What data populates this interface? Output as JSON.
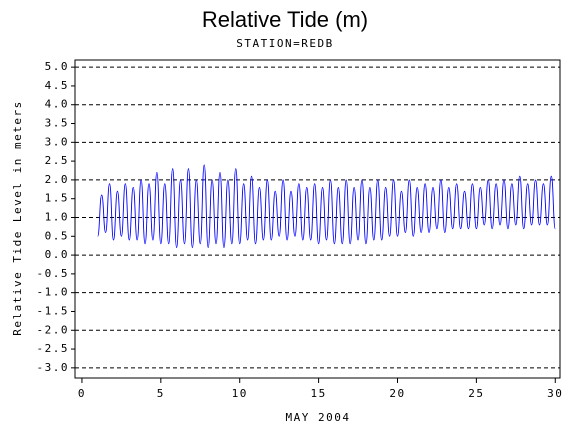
{
  "chart_data": {
    "type": "line",
    "title": "Relative Tide (m)",
    "subtitle": "STATION=REDB",
    "x_label": "MAY 2004",
    "y_label": "Relative Tide Level in meters",
    "xlim": [
      -0.44,
      30.3
    ],
    "xticks": [
      0,
      5,
      10,
      15,
      20,
      25,
      30
    ],
    "ylim": [
      -3.27,
      5.19
    ],
    "yticks": [
      {
        "value": 5,
        "label": "5.0"
      },
      {
        "value": 4.5,
        "label": "4.5"
      },
      {
        "value": 4,
        "label": "4.0"
      },
      {
        "value": 3.5,
        "label": "3.5"
      },
      {
        "value": 3,
        "label": "3.0"
      },
      {
        "value": 2.5,
        "label": "2.5"
      },
      {
        "value": 2,
        "label": "2.0"
      },
      {
        "value": 1.5,
        "label": "1.5"
      },
      {
        "value": 1,
        "label": "1.0"
      },
      {
        "value": 0.5,
        "label": "0.5"
      },
      {
        "value": 0,
        "label": "0.0"
      },
      {
        "value": -0.5,
        "label": "-0.5"
      },
      {
        "value": -1,
        "label": "-1.0"
      },
      {
        "value": -1.5,
        "label": "-1.5"
      },
      {
        "value": -2,
        "label": "-2.0"
      },
      {
        "value": -2.5,
        "label": "-2.5"
      },
      {
        "value": -3,
        "label": "-3.0"
      }
    ],
    "grid": true,
    "x": [
      1,
      1.25,
      1.5,
      1.75,
      2,
      2.25,
      2.5,
      2.75,
      3,
      3.25,
      3.5,
      3.75,
      4,
      4.25,
      4.5,
      4.75,
      5,
      5.25,
      5.5,
      5.75,
      6,
      6.25,
      6.5,
      6.75,
      7,
      7.25,
      7.5,
      7.75,
      8,
      8.25,
      8.5,
      8.75,
      9,
      9.25,
      9.5,
      9.75,
      10,
      10.25,
      10.5,
      10.75,
      11,
      11.25,
      11.5,
      11.75,
      12,
      12.25,
      12.5,
      12.75,
      13,
      13.25,
      13.5,
      13.75,
      14,
      14.25,
      14.5,
      14.75,
      15,
      15.25,
      15.5,
      15.75,
      16,
      16.25,
      16.5,
      16.75,
      17,
      17.25,
      17.5,
      17.75,
      18,
      18.25,
      18.5,
      18.75,
      19,
      19.25,
      19.5,
      19.75,
      20,
      20.25,
      20.5,
      20.75,
      21,
      21.25,
      21.5,
      21.75,
      22,
      22.25,
      22.5,
      22.75,
      23,
      23.25,
      23.5,
      23.75,
      24,
      24.25,
      24.5,
      24.75,
      25,
      25.25,
      25.5,
      25.75,
      26,
      26.25,
      26.5,
      26.75,
      27,
      27.25,
      27.5,
      27.75,
      28,
      28.25,
      28.5,
      28.75,
      29,
      29.25,
      29.5,
      29.75,
      30
    ],
    "series": [
      {
        "color": "#0000ff",
        "values": [
          0.5,
          1.6,
          0.6,
          1.9,
          0.4,
          1.7,
          0.5,
          1.9,
          0.4,
          1.8,
          0.4,
          2.0,
          0.3,
          1.9,
          0.4,
          2.2,
          0.3,
          1.9,
          0.3,
          2.3,
          0.2,
          2.0,
          0.3,
          2.3,
          0.2,
          2.0,
          0.3,
          2.4,
          0.2,
          2.0,
          0.3,
          2.2,
          0.2,
          2.0,
          0.3,
          2.3,
          0.3,
          1.9,
          0.4,
          2.1,
          0.3,
          1.8,
          0.4,
          2.0,
          0.4,
          1.7,
          0.5,
          2.0,
          0.4,
          1.7,
          0.5,
          1.9,
          0.4,
          1.8,
          0.4,
          1.9,
          0.3,
          1.8,
          0.4,
          2.0,
          0.3,
          1.8,
          0.3,
          2.0,
          0.3,
          1.8,
          0.4,
          2.0,
          0.3,
          1.8,
          0.4,
          2.0,
          0.4,
          1.8,
          0.5,
          2.0,
          0.5,
          1.7,
          0.6,
          2.0,
          0.5,
          1.8,
          0.6,
          1.9,
          0.6,
          1.8,
          0.7,
          2.0,
          0.6,
          1.8,
          0.7,
          1.9,
          0.7,
          1.7,
          0.7,
          1.9,
          0.7,
          1.8,
          0.8,
          2.0,
          0.7,
          1.9,
          0.8,
          2.0,
          0.7,
          1.9,
          0.8,
          2.1,
          0.7,
          1.9,
          0.8,
          2.0,
          0.8,
          1.9,
          0.8,
          2.1,
          0.7
        ]
      }
    ]
  }
}
